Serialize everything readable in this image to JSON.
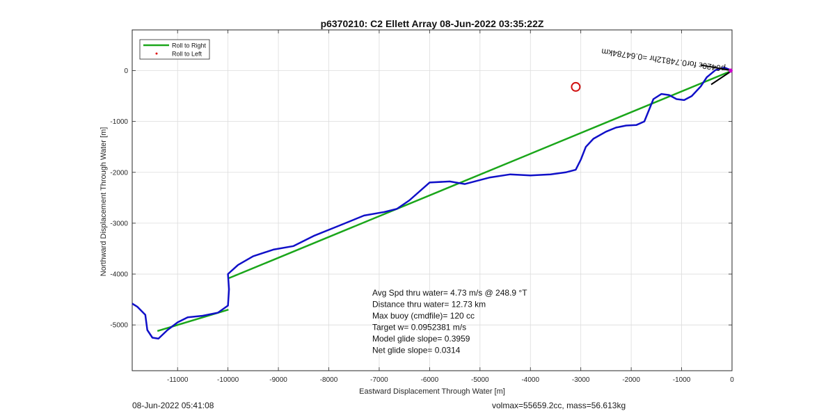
{
  "chart_data": {
    "type": "line",
    "title": "p6370210: C2 Ellett Array 08-Jun-2022 03:35:22Z",
    "xlabel": "Eastward Displacement Through Water [m]",
    "ylabel": "Northward Displacement Through Water [m]",
    "xlim": [
      -11900,
      0
    ],
    "ylim": [
      -5900,
      800
    ],
    "xticks": [
      -11000,
      -10000,
      -9000,
      -8000,
      -7000,
      -6000,
      -5000,
      -4000,
      -3000,
      -2000,
      -1000,
      0
    ],
    "yticks": [
      -5000,
      -4000,
      -3000,
      -2000,
      -1000,
      0
    ],
    "grid": true,
    "legend": {
      "placement": "top-left",
      "entries": [
        "Roll to Right",
        "Roll to Left"
      ]
    },
    "colors": {
      "roll_right": "#1aa61a",
      "roll_left": "#e01010",
      "track": "#1010c8",
      "target": "#d01010",
      "arrow": "#000000",
      "marker": "#cc00cc"
    },
    "series": [
      {
        "name": "Roll to Right",
        "segments": [
          [
            [
              0,
              0
            ],
            [
              -9980,
              -4080
            ]
          ],
          [
            [
              -9990,
              -4700
            ],
            [
              -11400,
              -5120
            ]
          ]
        ]
      },
      {
        "name": "Roll to Left",
        "points": []
      }
    ],
    "track": [
      [
        0,
        0
      ],
      [
        -150,
        60
      ],
      [
        -330,
        10
      ],
      [
        -500,
        -130
      ],
      [
        -620,
        -310
      ],
      [
        -800,
        -500
      ],
      [
        -950,
        -580
      ],
      [
        -1100,
        -560
      ],
      [
        -1250,
        -480
      ],
      [
        -1400,
        -460
      ],
      [
        -1560,
        -560
      ],
      [
        -1650,
        -780
      ],
      [
        -1740,
        -1000
      ],
      [
        -1900,
        -1070
      ],
      [
        -2100,
        -1080
      ],
      [
        -2300,
        -1120
      ],
      [
        -2500,
        -1200
      ],
      [
        -2750,
        -1340
      ],
      [
        -2900,
        -1500
      ],
      [
        -3000,
        -1750
      ],
      [
        -3100,
        -1950
      ],
      [
        -3300,
        -2000
      ],
      [
        -3600,
        -2040
      ],
      [
        -4000,
        -2060
      ],
      [
        -4400,
        -2040
      ],
      [
        -4800,
        -2100
      ],
      [
        -5300,
        -2230
      ],
      [
        -5600,
        -2180
      ],
      [
        -6000,
        -2200
      ],
      [
        -6400,
        -2550
      ],
      [
        -6650,
        -2720
      ],
      [
        -6900,
        -2780
      ],
      [
        -7300,
        -2850
      ],
      [
        -7800,
        -3050
      ],
      [
        -8300,
        -3250
      ],
      [
        -8700,
        -3450
      ],
      [
        -9100,
        -3520
      ],
      [
        -9500,
        -3650
      ],
      [
        -9800,
        -3820
      ],
      [
        -10000,
        -4000
      ],
      [
        -9980,
        -4300
      ],
      [
        -10000,
        -4620
      ],
      [
        -10200,
        -4760
      ],
      [
        -10500,
        -4820
      ],
      [
        -10800,
        -4850
      ],
      [
        -11000,
        -4950
      ],
      [
        -11200,
        -5100
      ],
      [
        -11380,
        -5270
      ],
      [
        -11500,
        -5250
      ],
      [
        -11600,
        -5100
      ],
      [
        -11640,
        -4800
      ],
      [
        -11800,
        -4640
      ],
      [
        -11900,
        -4580
      ]
    ],
    "target_circle": [
      -3100,
      -320
    ],
    "annotation": {
      "text": "p6420ε for0.74812hr =0.64784km",
      "rotation_deg": 188
    },
    "stats": [
      "Avg Spd thru water=  4.73 m/s @ 248.9 °T",
      "Distance thru water= 12.73 km",
      "Max buoy (cmdfile)= 120 cc",
      "Target w= 0.0952381 m/s",
      "Model glide slope= 0.3959",
      "Net glide slope= 0.0314"
    ]
  },
  "footer": {
    "timestamp": "08-Jun-2022 05:41:08",
    "vol_mass": "volmax=55659.2cc, mass=56.613kg"
  }
}
